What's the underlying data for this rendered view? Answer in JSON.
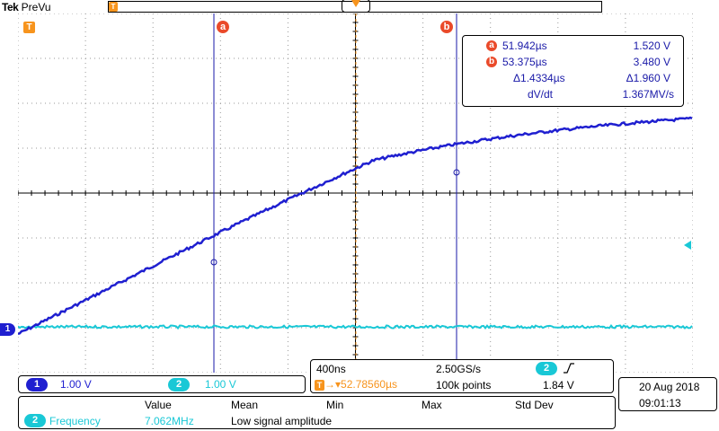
{
  "brand": {
    "logo": "Tek",
    "mode": "PreVu"
  },
  "markers": {
    "trigger_label": "T",
    "cursor_a": "a",
    "cursor_b": "b",
    "ch1": "1",
    "ch2": "2"
  },
  "cursor_readout": {
    "a_time": "51.942µs",
    "a_volt": "1.520 V",
    "b_time": "53.375µs",
    "b_volt": "3.480 V",
    "delta_time": "Δ1.4334µs",
    "delta_volt": "Δ1.960 V",
    "rate_label": "dV/dt",
    "rate_value": "1.367MV/s"
  },
  "channels": {
    "ch1_scale": "1.00 V",
    "ch2_scale": "1.00 V"
  },
  "timebase": {
    "time_div": "400ns",
    "sample_rate": "2.50GS/s",
    "trigger_position": "52.78560µs",
    "record_length": "100k points",
    "trigger_source": "2",
    "trigger_slope_icon": "rising-edge-icon",
    "trigger_level": "1.84 V"
  },
  "measurements": {
    "headers": [
      "Value",
      "Mean",
      "Min",
      "Max",
      "Std Dev"
    ],
    "rows": [
      {
        "channel": "2",
        "name": "Frequency",
        "value": "7.062MHz",
        "note": "Low signal amplitude"
      }
    ]
  },
  "datetime": {
    "date": "20 Aug 2018",
    "time": "09:01:13"
  },
  "colors": {
    "ch1": "#1f1fd0",
    "ch2": "#19c8d6",
    "trigger": "#f7941d",
    "cursor_badge": "#ea4a2a",
    "cursor_line": "#1a1aa8"
  }
}
